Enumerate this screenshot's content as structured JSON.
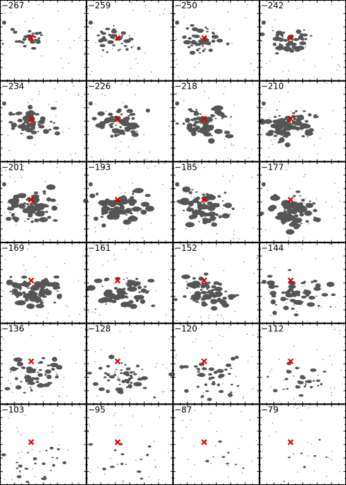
{
  "panels": [
    {
      "label": "−267"
    },
    {
      "label": "−259"
    },
    {
      "label": "−250"
    },
    {
      "label": "−242"
    },
    {
      "label": "−234"
    },
    {
      "label": "−226"
    },
    {
      "label": "−218"
    },
    {
      "label": "−210"
    },
    {
      "label": "−201"
    },
    {
      "label": "−193"
    },
    {
      "label": "−185"
    },
    {
      "label": "−177"
    },
    {
      "label": "−169"
    },
    {
      "label": "−161"
    },
    {
      "label": "−152"
    },
    {
      "label": "−144"
    },
    {
      "label": "−136"
    },
    {
      "label": "−128"
    },
    {
      "label": "−120"
    },
    {
      "label": "−112"
    },
    {
      "label": "−103"
    },
    {
      "label": "−95"
    },
    {
      "label": "−87"
    },
    {
      "label": "−79"
    }
  ]
}
